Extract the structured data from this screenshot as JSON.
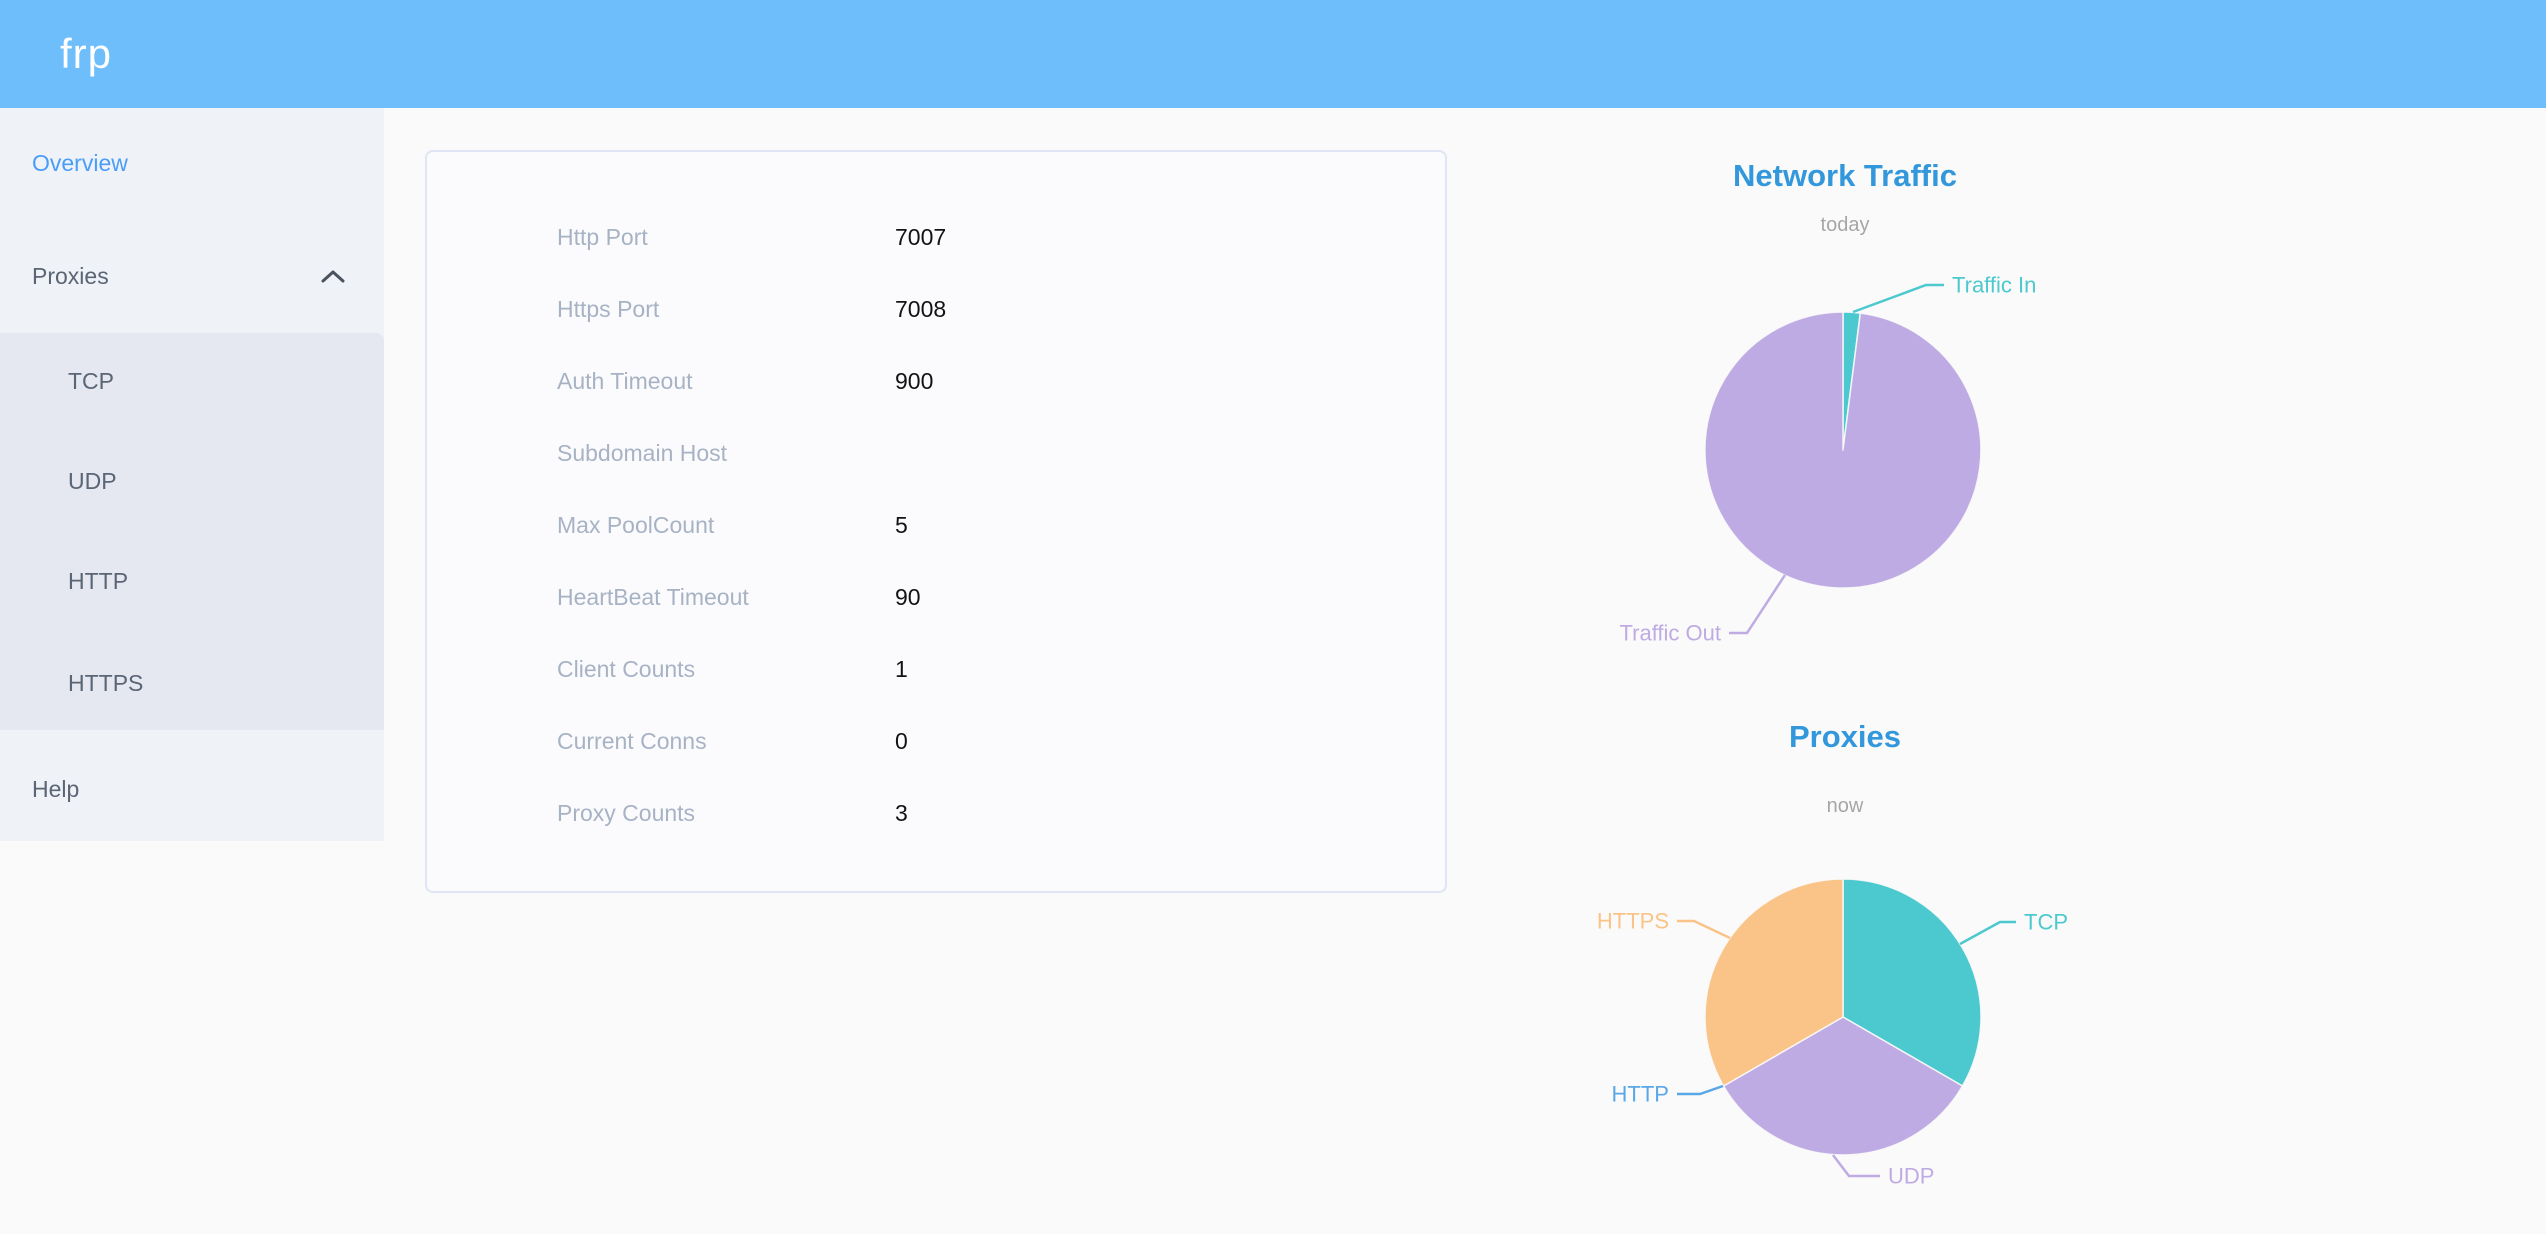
{
  "header": {
    "logo": "frp"
  },
  "sidebar": {
    "items": [
      {
        "label": "Overview",
        "active": true
      },
      {
        "label": "Proxies",
        "expanded": true,
        "children": [
          "TCP",
          "UDP",
          "HTTP",
          "HTTPS"
        ]
      },
      {
        "label": "Help",
        "active": false
      }
    ]
  },
  "overview": {
    "rows": [
      {
        "label": "Http Port",
        "value": "7007"
      },
      {
        "label": "Https Port",
        "value": "7008"
      },
      {
        "label": "Auth Timeout",
        "value": "900"
      },
      {
        "label": "Subdomain Host",
        "value": ""
      },
      {
        "label": "Max PoolCount",
        "value": "5"
      },
      {
        "label": "HeartBeat Timeout",
        "value": "90"
      },
      {
        "label": "Client Counts",
        "value": "1"
      },
      {
        "label": "Current Conns",
        "value": "0"
      },
      {
        "label": "Proxy Counts",
        "value": "3"
      }
    ]
  },
  "chart_data": [
    {
      "type": "pie",
      "title": "Network Traffic",
      "subtitle": "today",
      "legend_position": "callout-labels",
      "units": "percent of total (estimated from slice angles)",
      "slices": [
        {
          "label": "Traffic In",
          "value": 2,
          "color": "#4cc9ce"
        },
        {
          "label": "Traffic Out",
          "value": 98,
          "color": "#bfabe3"
        }
      ]
    },
    {
      "type": "pie",
      "title": "Proxies",
      "subtitle": "now",
      "legend_position": "callout-labels",
      "units": "proxy count",
      "slices": [
        {
          "label": "TCP",
          "value": 1,
          "color": "#4cc9ce"
        },
        {
          "label": "UDP",
          "value": 1,
          "color": "#bfabe3"
        },
        {
          "label": "HTTPS",
          "value": 1,
          "color": "#fac387"
        },
        {
          "label": "HTTP",
          "value": 0,
          "color": "#5aa7e8"
        }
      ]
    }
  ],
  "colors": {
    "header_bg": "#6ebefc",
    "sidebar_bg": "#eff2f7",
    "submenu_bg": "#e5e8f1",
    "sidebar_text": "#5a6575",
    "active_item": "#4a9df8",
    "page_bg": "#fafafa",
    "card_bg": "#fbfbfd",
    "card_border": "#dfe5f4",
    "row_label": "#a7b3c4",
    "row_value": "#131313",
    "chart_title": "#3398db",
    "chart_subtitle": "#a6a6a6"
  },
  "icons": {
    "proxies_expand": "chevron-up-icon"
  }
}
